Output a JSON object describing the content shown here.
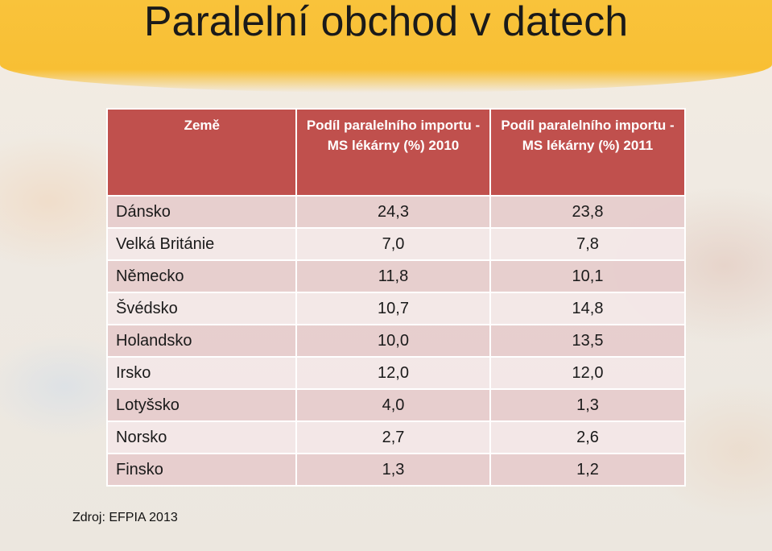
{
  "title": "Paralelní obchod v datech",
  "table": {
    "headers": [
      "Země",
      "Podíl paralelního importu - MS lékárny (%) 2010",
      "Podíl paralelního importu - MS lékárny (%) 2011"
    ],
    "rows": [
      [
        "Dánsko",
        "24,3",
        "23,8"
      ],
      [
        "Velká Británie",
        "7,0",
        "7,8"
      ],
      [
        "Německo",
        "11,8",
        "10,1"
      ],
      [
        "Švédsko",
        "10,7",
        "14,8"
      ],
      [
        "Holandsko",
        "10,0",
        "13,5"
      ],
      [
        "Irsko",
        "12,0",
        "12,0"
      ],
      [
        "Lotyšsko",
        "4,0",
        "1,3"
      ],
      [
        "Norsko",
        "2,7",
        "2,6"
      ],
      [
        "Finsko",
        "1,3",
        "1,2"
      ]
    ]
  },
  "source": "Zdroj: EFPIA  2013",
  "colors": {
    "header_bg": "#c0504d",
    "row_odd": "#e6cdcd",
    "row_even": "#f3e7e7",
    "banner": "#f9c33b"
  }
}
